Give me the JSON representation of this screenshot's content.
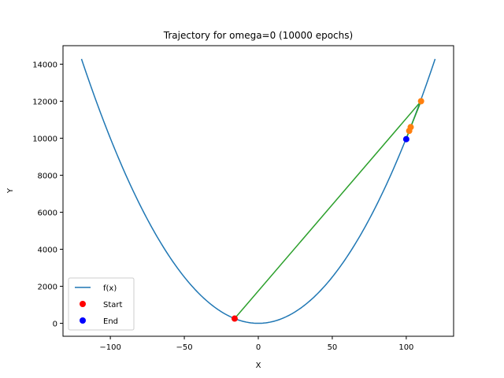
{
  "chart_data": {
    "type": "line",
    "title": "Trajectory for omega=0 (10000 epochs)",
    "xlabel": "X",
    "ylabel": "Y",
    "xlim": [
      -132,
      132
    ],
    "ylim": [
      -700,
      15000
    ],
    "xticks": [
      -100,
      -50,
      0,
      50,
      100
    ],
    "yticks": [
      0,
      2000,
      4000,
      6000,
      8000,
      10000,
      12000,
      14000
    ],
    "grid": false,
    "legend_position": "lower-left",
    "curve": {
      "name": "f(x)",
      "function": "x^2",
      "x_range": [
        -119.5,
        119.5
      ],
      "color": "#1f77b4"
    },
    "trajectory": {
      "color": "#2ca02c",
      "points_color": "#ff7f0e",
      "points": [
        {
          "x": -16,
          "y": 256
        },
        {
          "x": 110,
          "y": 12000
        },
        {
          "x": 103,
          "y": 10600
        },
        {
          "x": 102,
          "y": 10400
        },
        {
          "x": 100,
          "y": 9950
        }
      ]
    },
    "start": {
      "name": "Start",
      "x": -16,
      "y": 256,
      "color": "#ff0000"
    },
    "end": {
      "name": "End",
      "x": 100,
      "y": 9950,
      "color": "#0000ff"
    },
    "legend": [
      {
        "label": "f(x)",
        "kind": "line",
        "color": "#1f77b4"
      },
      {
        "label": "Start",
        "kind": "marker",
        "color": "#ff0000"
      },
      {
        "label": "End",
        "kind": "marker",
        "color": "#0000ff"
      }
    ]
  }
}
